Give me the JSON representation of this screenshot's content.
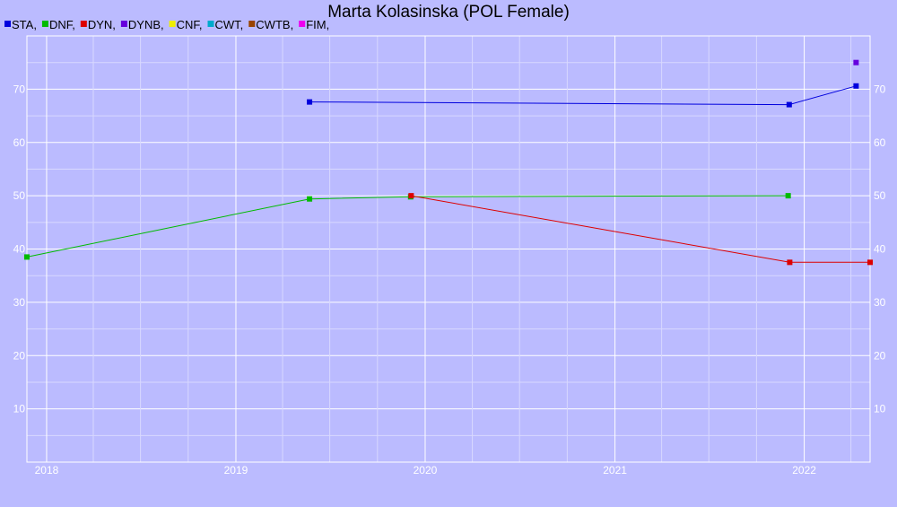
{
  "chart_data": {
    "type": "line",
    "title": "Marta Kolasinska (POL Female)",
    "xlabel": "",
    "ylabel": "",
    "x_ticks": [
      "2018",
      "2019",
      "2020",
      "2021",
      "2022"
    ],
    "y_ticks": [
      10,
      20,
      30,
      40,
      50,
      60,
      70
    ],
    "xlim": [
      "2017-11-24",
      "2022-05-08"
    ],
    "ylim": [
      0,
      80
    ],
    "grid": true,
    "legend_position": "top-left",
    "legend": [
      {
        "name": "STA,",
        "color": "#0000dd"
      },
      {
        "name": "DNF,",
        "color": "#00bb00"
      },
      {
        "name": "DYN,",
        "color": "#dd0000"
      },
      {
        "name": "DYNB,",
        "color": "#6600dd"
      },
      {
        "name": "CNF,",
        "color": "#eeee00"
      },
      {
        "name": "CWT,",
        "color": "#00aacc"
      },
      {
        "name": "CWTB,",
        "color": "#994400"
      },
      {
        "name": "FIM,",
        "color": "#ee00ee"
      }
    ],
    "series": [
      {
        "name": "STA,",
        "color": "#0000dd",
        "points": [
          {
            "x": "2019-05-23",
            "y": 67.6
          },
          {
            "x": "2021-12-03",
            "y": 67.1
          },
          {
            "x": "2022-04-11",
            "y": 70.6
          }
        ]
      },
      {
        "name": "DNF,",
        "color": "#00bb00",
        "points": [
          {
            "x": "2017-11-24",
            "y": 38.5
          },
          {
            "x": "2019-05-23",
            "y": 49.4
          },
          {
            "x": "2019-12-04",
            "y": 49.8
          },
          {
            "x": "2021-12-01",
            "y": 50.0
          }
        ]
      },
      {
        "name": "DYN,",
        "color": "#dd0000",
        "points": [
          {
            "x": "2019-12-05",
            "y": 50.0
          },
          {
            "x": "2021-12-04",
            "y": 37.5
          },
          {
            "x": "2022-05-08",
            "y": 37.5
          }
        ]
      },
      {
        "name": "DYNB,",
        "color": "#6600dd",
        "points": [
          {
            "x": "2022-04-11",
            "y": 75.0
          }
        ]
      }
    ]
  }
}
